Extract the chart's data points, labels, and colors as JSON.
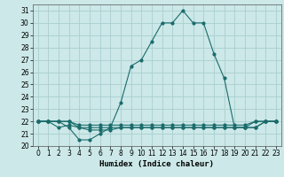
{
  "title": "",
  "xlabel": "Humidex (Indice chaleur)",
  "ylabel": "",
  "background_color": "#cce8e8",
  "grid_color": "#aacece",
  "line_color": "#1a6b6b",
  "x_values": [
    0,
    1,
    2,
    3,
    4,
    5,
    6,
    7,
    8,
    9,
    10,
    11,
    12,
    13,
    14,
    15,
    16,
    17,
    18,
    19,
    20,
    21,
    22,
    23
  ],
  "main_series": [
    22,
    22,
    22,
    21.5,
    20.5,
    20.5,
    21,
    21.5,
    23.5,
    26.5,
    27,
    28.5,
    30,
    30,
    31,
    30,
    30,
    27.5,
    25.5,
    21.5,
    21.5,
    22,
    22,
    22
  ],
  "flat_series1": [
    22,
    22,
    22,
    22,
    21.7,
    21.7,
    21.7,
    21.7,
    21.7,
    21.7,
    21.7,
    21.7,
    21.7,
    21.7,
    21.7,
    21.7,
    21.7,
    21.7,
    21.7,
    21.7,
    21.7,
    22,
    22,
    22
  ],
  "flat_series2": [
    22,
    22,
    21.5,
    21.7,
    21.5,
    21.3,
    21.3,
    21.3,
    21.5,
    21.5,
    21.5,
    21.5,
    21.5,
    21.5,
    21.5,
    21.5,
    21.5,
    21.5,
    21.5,
    21.5,
    21.5,
    21.5,
    22,
    22
  ],
  "flat_series3": [
    22,
    22,
    22,
    22,
    21.5,
    21.5,
    21.5,
    21.5,
    21.5,
    21.5,
    21.5,
    21.5,
    21.5,
    21.5,
    21.5,
    21.5,
    21.5,
    21.5,
    21.5,
    21.5,
    21.5,
    21.5,
    22,
    22
  ],
  "ylim": [
    20,
    31.5
  ],
  "yticks": [
    20,
    21,
    22,
    23,
    24,
    25,
    26,
    27,
    28,
    29,
    30,
    31
  ],
  "xticks": [
    0,
    1,
    2,
    3,
    4,
    5,
    6,
    7,
    8,
    9,
    10,
    11,
    12,
    13,
    14,
    15,
    16,
    17,
    18,
    19,
    20,
    21,
    22,
    23
  ],
  "tick_fontsize": 5.5,
  "label_fontsize": 6.5
}
